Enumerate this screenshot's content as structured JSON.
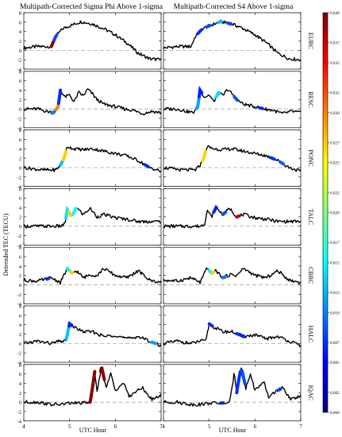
{
  "chart_data": {
    "type": "line",
    "panel_titles": [
      "Multipath-Corrected Sigma Phi Above 1-sigma",
      "Multipath-Corrected S4 Above 1-sigma"
    ],
    "ylabel": "Detrended TEC (TECU)",
    "xlabel": "UTC Hour",
    "xlim": [
      4,
      7
    ],
    "ylim": [
      -4,
      8
    ],
    "xticks": [
      "4",
      "5",
      "6",
      "7"
    ],
    "yticks": [
      "-4",
      "-2",
      "0",
      "2",
      "4",
      "6",
      "8"
    ],
    "colorbar": {
      "min": 0.0,
      "max": 0.04,
      "ticks": [
        "0.040",
        "0.037",
        "0.035",
        "0.032",
        "0.030",
        "0.027",
        "0.025",
        "0.022",
        "0.020",
        "0.017",
        "0.015",
        "0.012",
        "0.010",
        "0.007",
        "0.005",
        "0.002",
        "0.000"
      ],
      "colors": [
        "#00007f",
        "#0000ff",
        "#0080ff",
        "#00ffff",
        "#80ff80",
        "#ffff00",
        "#ff8000",
        "#ff0000",
        "#7f0000"
      ]
    },
    "stations": [
      {
        "name": "EURC",
        "x": [
          4.0,
          4.3,
          4.6,
          4.7,
          4.85,
          5.0,
          5.25,
          5.5,
          5.75,
          6.0,
          6.25,
          6.5,
          6.75,
          7.0
        ],
        "y": [
          0.5,
          0.8,
          0.8,
          3.0,
          4.6,
          5.2,
          6.1,
          5.6,
          4.6,
          3.3,
          1.6,
          -0.6,
          -1.8,
          -2.0
        ],
        "left_hl": [
          {
            "x0": 4.6,
            "x1": 4.66,
            "color": "#8b0000"
          },
          {
            "x0": 4.66,
            "x1": 4.72,
            "color": "#1e3cff"
          }
        ],
        "right_hl": [
          {
            "x0": 4.75,
            "x1": 4.82,
            "color": "#0030ff"
          },
          {
            "x0": 4.95,
            "x1": 5.02,
            "color": "#0050ff"
          },
          {
            "x0": 5.2,
            "x1": 5.26,
            "color": "#00c0ff"
          },
          {
            "x0": 5.4,
            "x1": 5.48,
            "color": "#1040ff"
          }
        ]
      },
      {
        "name": "RESC",
        "x": [
          4.0,
          4.3,
          4.5,
          4.65,
          4.75,
          4.8,
          4.9,
          5.0,
          5.1,
          5.2,
          5.3,
          5.4,
          5.5,
          5.6,
          5.75,
          6.0,
          6.2,
          6.4,
          6.6,
          6.8,
          7.0
        ],
        "y": [
          0.0,
          0.0,
          -0.5,
          -0.8,
          0.5,
          4.0,
          2.5,
          3.0,
          1.5,
          3.5,
          2.8,
          4.2,
          3.2,
          2.0,
          1.0,
          0.5,
          0.0,
          -0.3,
          -1.0,
          -0.5,
          -0.8
        ],
        "left_hl": [
          {
            "x0": 4.62,
            "x1": 4.7,
            "color": "#0080ff"
          },
          {
            "x0": 4.7,
            "x1": 4.76,
            "color": "#ff8000"
          },
          {
            "x0": 4.76,
            "x1": 4.8,
            "color": "#0030ff"
          }
        ],
        "right_hl": [
          {
            "x0": 4.72,
            "x1": 4.78,
            "color": "#00a0ff"
          },
          {
            "x0": 4.78,
            "x1": 4.84,
            "color": "#0020ff"
          },
          {
            "x0": 5.15,
            "x1": 5.22,
            "color": "#00e0ff"
          },
          {
            "x0": 5.55,
            "x1": 5.62,
            "color": "#0050ff"
          },
          {
            "x0": 6.1,
            "x1": 6.16,
            "color": "#0030ff"
          }
        ]
      },
      {
        "name": "PONC",
        "x": [
          4.0,
          4.4,
          4.7,
          4.8,
          4.88,
          4.95,
          5.1,
          5.3,
          5.5,
          5.75,
          6.0,
          6.25,
          6.5,
          6.75,
          7.0
        ],
        "y": [
          0.0,
          -0.5,
          -0.5,
          0.5,
          2.0,
          4.5,
          4.0,
          3.8,
          4.0,
          3.5,
          3.0,
          2.5,
          1.5,
          0.0,
          -0.8
        ],
        "left_hl": [
          {
            "x0": 4.8,
            "x1": 4.86,
            "color": "#00c0ff"
          },
          {
            "x0": 4.86,
            "x1": 4.92,
            "color": "#ffd000"
          },
          {
            "x0": 6.65,
            "x1": 6.72,
            "color": "#0030ff"
          }
        ],
        "right_hl": [
          {
            "x0": 4.85,
            "x1": 4.92,
            "color": "#ffd000"
          },
          {
            "x0": 6.35,
            "x1": 6.42,
            "color": "#0030ff"
          },
          {
            "x0": 6.55,
            "x1": 6.62,
            "color": "#0060ff"
          }
        ]
      },
      {
        "name": "TALC",
        "x": [
          4.0,
          4.4,
          4.8,
          4.9,
          4.95,
          5.05,
          5.15,
          5.3,
          5.45,
          5.6,
          5.75,
          6.0,
          6.25,
          6.5,
          6.75,
          7.0
        ],
        "y": [
          0.0,
          0.0,
          0.0,
          0.5,
          3.5,
          2.0,
          4.0,
          2.5,
          3.8,
          2.0,
          2.5,
          1.8,
          1.5,
          1.0,
          1.0,
          1.0
        ],
        "left_hl": [
          {
            "x0": 4.92,
            "x1": 4.98,
            "color": "#00e0ff"
          },
          {
            "x0": 4.98,
            "x1": 5.03,
            "color": "#ffcc00"
          },
          {
            "x0": 5.08,
            "x1": 5.14,
            "color": "#00ffff"
          }
        ],
        "right_hl": [
          {
            "x0": 5.1,
            "x1": 5.16,
            "color": "#0020ff"
          },
          {
            "x0": 5.3,
            "x1": 5.36,
            "color": "#0050ff"
          },
          {
            "x0": 5.6,
            "x1": 5.66,
            "color": "#c00000"
          }
        ]
      },
      {
        "name": "CBRC",
        "x": [
          4.0,
          4.3,
          4.6,
          4.8,
          4.95,
          5.05,
          5.15,
          5.3,
          5.45,
          5.6,
          5.75,
          6.0,
          6.25,
          6.5,
          6.75,
          7.0
        ],
        "y": [
          1.0,
          0.8,
          1.5,
          0.5,
          3.5,
          2.5,
          3.0,
          1.5,
          2.2,
          2.0,
          3.5,
          2.0,
          1.5,
          3.0,
          1.0,
          0.5
        ],
        "left_hl": [
          {
            "x0": 4.95,
            "x1": 5.02,
            "color": "#00ffff"
          },
          {
            "x0": 5.02,
            "x1": 5.06,
            "color": "#ffd000"
          },
          {
            "x0": 4.5,
            "x1": 4.55,
            "color": "#0030ff"
          }
        ],
        "right_hl": [
          {
            "x0": 5.0,
            "x1": 5.06,
            "color": "#00ffff"
          },
          {
            "x0": 5.06,
            "x1": 5.1,
            "color": "#ffd000"
          },
          {
            "x0": 5.3,
            "x1": 5.36,
            "color": "#0080ff"
          }
        ]
      },
      {
        "name": "HALC",
        "x": [
          4.0,
          4.3,
          4.6,
          4.8,
          4.92,
          5.0,
          5.1,
          5.3,
          5.5,
          5.75,
          6.0,
          6.25,
          6.5,
          6.75,
          7.0
        ],
        "y": [
          0.0,
          0.5,
          0.0,
          0.5,
          0.5,
          4.2,
          3.5,
          2.5,
          2.5,
          1.5,
          1.8,
          1.0,
          1.5,
          0.5,
          -0.5
        ],
        "left_hl": [
          {
            "x0": 4.93,
            "x1": 4.99,
            "color": "#00c0ff"
          },
          {
            "x0": 4.99,
            "x1": 5.05,
            "color": "#0020ff"
          },
          {
            "x0": 6.8,
            "x1": 6.88,
            "color": "#00a0ff"
          }
        ],
        "right_hl": [
          {
            "x0": 5.0,
            "x1": 5.07,
            "color": "#0030ff"
          },
          {
            "x0": 5.6,
            "x1": 5.66,
            "color": "#0030ff"
          },
          {
            "x0": 5.7,
            "x1": 5.76,
            "color": "#0020ff"
          }
        ]
      },
      {
        "name": "IQAC",
        "x": [
          4.0,
          4.3,
          4.6,
          4.8,
          5.0,
          5.3,
          5.45,
          5.5,
          5.55,
          5.6,
          5.65,
          5.7,
          5.8,
          5.9,
          6.0,
          6.1,
          6.2,
          6.3,
          6.4,
          6.6,
          6.8,
          7.0
        ],
        "y": [
          0.0,
          0.0,
          -0.5,
          -0.5,
          -0.2,
          -0.2,
          0.0,
          3.0,
          6.5,
          2.0,
          5.0,
          7.5,
          3.0,
          6.0,
          2.5,
          3.5,
          4.0,
          1.0,
          2.0,
          3.0,
          0.5,
          1.5
        ],
        "left_hl": [
          {
            "x0": 5.45,
            "x1": 5.55,
            "color": "#8b0000"
          },
          {
            "x0": 5.68,
            "x1": 5.76,
            "color": "#8b0000"
          }
        ],
        "right_hl": [
          {
            "x0": 5.25,
            "x1": 5.3,
            "color": "#0020ff"
          },
          {
            "x0": 5.6,
            "x1": 5.68,
            "color": "#0030ff"
          },
          {
            "x0": 5.72,
            "x1": 5.78,
            "color": "#0050ff"
          },
          {
            "x0": 6.5,
            "x1": 6.56,
            "color": "#0040ff"
          }
        ]
      }
    ]
  }
}
